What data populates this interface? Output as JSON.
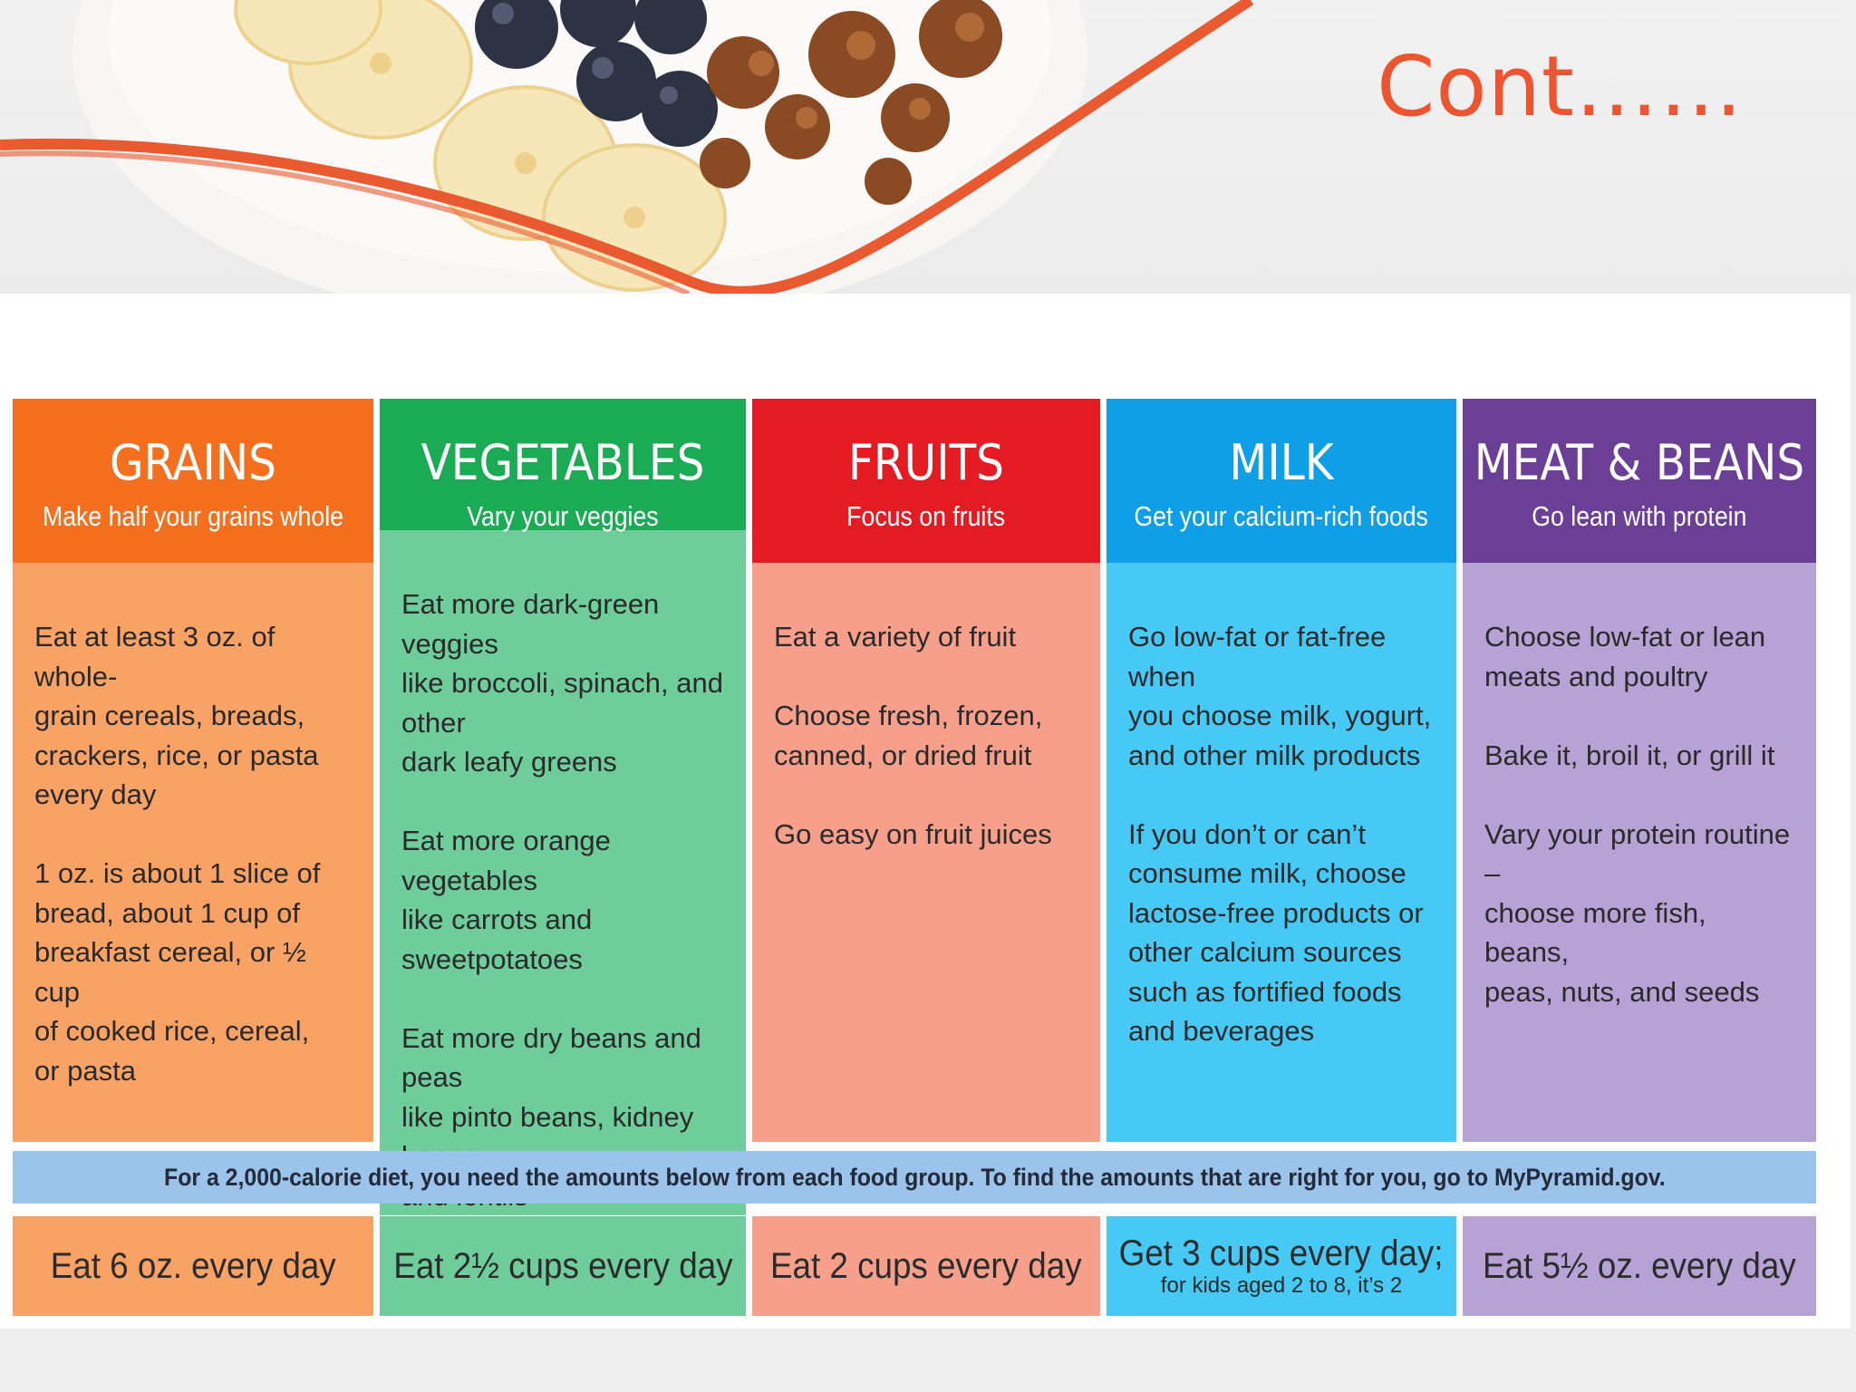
{
  "slide": {
    "title": "Cont……"
  },
  "banner": {
    "image": "granola-banana-blueberry-bowl-illustration",
    "accent_color": "#ec5530"
  },
  "food_groups": [
    {
      "name": "GRAINS",
      "subtitle": "Make half your grains whole",
      "header_color": "#f4701f",
      "body_color": "#f9a266",
      "tips": [
        "Eat at least 3 oz. of whole-\ngrain cereals, breads,\ncrackers, rice, or pasta\nevery day",
        "1 oz. is about 1 slice of\nbread, about 1 cup of\nbreakfast cereal, or ½ cup\nof cooked rice, cereal,\nor pasta"
      ],
      "amount": "Eat 6 oz. every day",
      "amount_note": ""
    },
    {
      "name": "VEGETABLES",
      "subtitle": "Vary your veggies",
      "header_color": "#1cab55",
      "body_color": "#6fcd9c",
      "tips": [
        "Eat more dark-green veggies\nlike broccoli, spinach, and other\ndark leafy greens",
        "Eat more orange vegetables\nlike carrots and sweetpotatoes",
        "Eat more dry beans and peas\nlike pinto beans, kidney beans,\nand lentils"
      ],
      "amount": "Eat 2½ cups every day",
      "amount_note": ""
    },
    {
      "name": "FRUITS",
      "subtitle": "Focus on fruits",
      "header_color": "#e51b24",
      "body_color": "#f6a08c",
      "tips": [
        "Eat a variety of fruit",
        "Choose fresh, frozen,\ncanned, or dried fruit",
        "Go easy on fruit juices"
      ],
      "amount": "Eat 2 cups every day",
      "amount_note": ""
    },
    {
      "name": "MILK",
      "subtitle": "Get your calcium-rich foods",
      "header_color": "#0f9fe6",
      "body_color": "#47c9f5",
      "tips": [
        "Go low-fat or fat-free when\nyou choose milk, yogurt,\nand other milk products",
        "If you don’t or can’t\nconsume milk, choose\nlactose-free products or\nother calcium sources\nsuch as fortified foods\nand beverages"
      ],
      "amount": "Get 3 cups every day;",
      "amount_note": "for kids aged 2 to 8, it’s 2"
    },
    {
      "name": "MEAT & BEANS",
      "subtitle": "Go lean with protein",
      "header_color": "#6c3f96",
      "body_color": "#b6a2d5",
      "tips": [
        "Choose low-fat or lean\nmeats and poultry",
        "Bake it, broil it, or grill it",
        "Vary your protein routine –\nchoose more fish, beans,\npeas, nuts, and seeds"
      ],
      "amount": "Eat 5½ oz. every day",
      "amount_note": ""
    }
  ],
  "note": "For a 2,000-calorie diet, you need the amounts below from each food group. To find the amounts that are right for you, go to MyPyramid.gov."
}
